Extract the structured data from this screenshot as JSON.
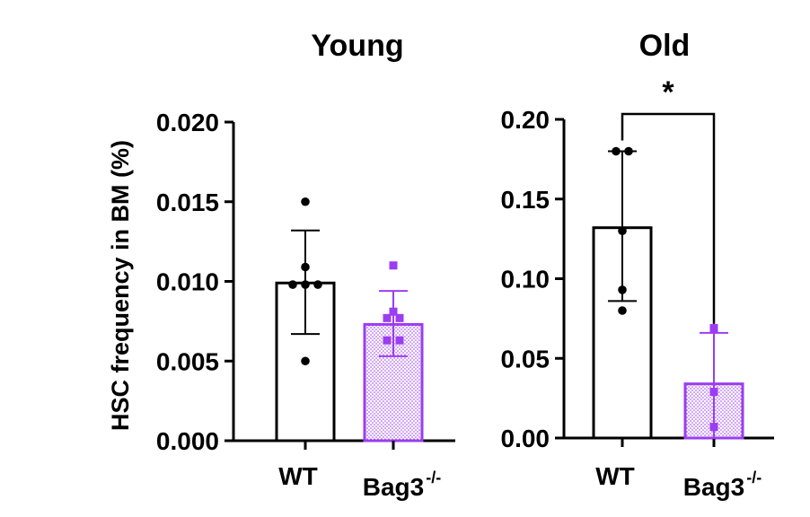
{
  "ylabel": "HSC frequency in BM (%)",
  "colors": {
    "wt": "#000000",
    "ko": "#9b3df0",
    "ko_fill": "#d9c6ee"
  },
  "chart_data": [
    {
      "type": "bar",
      "title": "Young",
      "categories": [
        "WT",
        "Bag3"
      ],
      "category_superscripts": [
        "",
        "-/-"
      ],
      "ylim": [
        0,
        0.02
      ],
      "yticks": [
        0.0,
        0.005,
        0.01,
        0.015,
        0.02
      ],
      "ytick_labels": [
        "0.000",
        "0.005",
        "0.010",
        "0.015",
        "0.020"
      ],
      "series": [
        {
          "values": [
            0.0099,
            0.0073
          ]
        }
      ],
      "error_bars": [
        {
          "low": 0.0067,
          "high": 0.0132
        },
        {
          "low": 0.0053,
          "high": 0.0094
        }
      ],
      "points": [
        [
          0.015,
          0.0109,
          0.0098,
          0.0098,
          0.0098,
          0.005
        ],
        [
          0.011,
          0.0081,
          0.0077,
          0.0077,
          0.0063,
          0.0063
        ]
      ],
      "significance": null
    },
    {
      "type": "bar",
      "title": "Old",
      "categories": [
        "WT",
        "Bag3"
      ],
      "category_superscripts": [
        "",
        "-/-"
      ],
      "ylim": [
        0,
        0.2
      ],
      "yticks": [
        0.0,
        0.05,
        0.1,
        0.15,
        0.2
      ],
      "ytick_labels": [
        "0.00",
        "0.05",
        "0.10",
        "0.15",
        "0.20"
      ],
      "series": [
        {
          "values": [
            0.132,
            0.034
          ]
        }
      ],
      "error_bars": [
        {
          "low": 0.086,
          "high": 0.18
        },
        {
          "low": 0.0,
          "high": 0.066
        }
      ],
      "points": [
        [
          0.18,
          0.18,
          0.13,
          0.093,
          0.08
        ],
        [
          0.069,
          0.029,
          0.007
        ]
      ],
      "significance": "*"
    }
  ]
}
